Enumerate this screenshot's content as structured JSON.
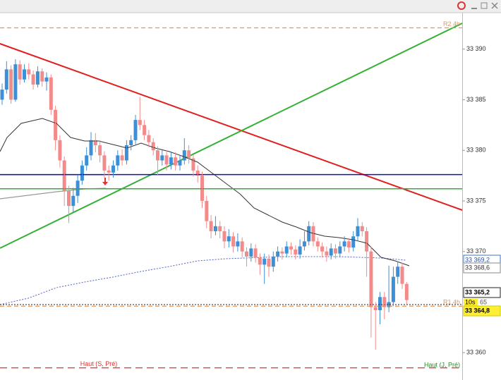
{
  "chart_data": {
    "type": "candlestick",
    "ylim": [
      33357.3,
      33393.6
    ],
    "yticks": [
      {
        "value": 33390,
        "label": "33 390"
      },
      {
        "value": 33385,
        "label": "33 385"
      },
      {
        "value": 33380,
        "label": "33 380"
      },
      {
        "value": 33375,
        "label": "33 375"
      },
      {
        "value": 33370,
        "label": "33 370"
      },
      {
        "value": 33360,
        "label": "33 360"
      }
    ],
    "up_color": "#3d8fd6",
    "down_color": "#f28b8b",
    "open": [
      33385,
      33386,
      33388,
      33385,
      33388.5,
      33387,
      33388,
      33387.5,
      33386.5,
      33387.8,
      33386.8,
      33387.2,
      33384,
      33381,
      33379,
      33376,
      33374.5,
      33375.5,
      33377,
      33378.5,
      33379.5,
      33381,
      33380.5,
      33379.5,
      33378,
      33377.8,
      33378.5,
      33379.5,
      33379,
      33380.5,
      33381,
      33383,
      33382.5,
      33381.5,
      33380.8,
      33380,
      33379,
      33379.5,
      33378.6,
      33379.3,
      33378.5,
      33379,
      33380,
      33379.2,
      33378,
      33377.5,
      33375,
      33373,
      33372,
      33372.5,
      33372,
      33371,
      33371.5,
      33370.5,
      33371,
      33370,
      33369.5,
      33370.3,
      33369.4,
      33368.7,
      33369.3,
      33368.5,
      33369.5,
      33370,
      33369.8,
      33370.5,
      33370.2,
      33369.7,
      33370.5,
      33371,
      33372.5,
      33371,
      33370.5,
      33370,
      33369.6,
      33370.3,
      33369.8,
      33370.5,
      33371,
      33370.4,
      33371.5,
      33372.5,
      33372,
      33370,
      33364.5,
      33364.2,
      33365.5,
      33364.5,
      33365,
      33367.5,
      33368.5,
      33366.8
    ],
    "high": [
      33386.6,
      33388.8,
      33388.4,
      33389,
      33388.9,
      33388.5,
      33388.6,
      33387.9,
      33388.3,
      33388.1,
      33387.7,
      33387.5,
      33384.4,
      33381.5,
      33379.4,
      33376.5,
      33376.3,
      33377.6,
      33379,
      33380.3,
      33381.8,
      33381.7,
      33381,
      33379.9,
      33378.5,
      33379,
      33380,
      33380.1,
      33381,
      33381.5,
      33383.5,
      33385.3,
      33383,
      33382,
      33381.2,
      33380.4,
      33380,
      33380,
      33379.8,
      33379.8,
      33379.5,
      33381.2,
      33380.5,
      33379.6,
      33378.5,
      33377.9,
      33375.5,
      33373.6,
      33373.5,
      33373,
      33372.5,
      33372.2,
      33371.9,
      33371.8,
      33371.4,
      33370.4,
      33370.8,
      33370.7,
      33369.8,
      33369.8,
      33369.7,
      33370,
      33370.5,
      33370.4,
      33371,
      33370.9,
      33370.6,
      33371.2,
      33372,
      33373,
      33372.9,
      33371.4,
      33370.9,
      33370.5,
      33370.8,
      33370.7,
      33371,
      33371.5,
      33371.3,
      33372,
      33373.3,
      33372.9,
      33372.4,
      33370.5,
      33365,
      33366,
      33366,
      33368.6,
      33368.5,
      33369,
      33368.9,
      33367
    ],
    "low": [
      33384.5,
      33385.6,
      33384.6,
      33384.8,
      33386.5,
      33386.7,
      33387,
      33386,
      33386.2,
      33386.3,
      33385.9,
      33383.5,
      33380,
      33378.3,
      33374.5,
      33372.8,
      33373.8,
      33374.8,
      33376.6,
      33378,
      33379,
      33379.8,
      33378.8,
      33377.3,
      33377,
      33377.3,
      33378,
      33378.5,
      33378.6,
      33380,
      33380.6,
      33382,
      33381,
      33380.3,
      33379.5,
      33377.5,
      33378.5,
      33378,
      33378.1,
      33378,
      33378,
      33378.6,
      33378.7,
      33377.4,
      33376.8,
      33374.3,
      33372.3,
      33371.3,
      33371.6,
      33371.3,
      33370.3,
      33370.4,
      33369.9,
      33370,
      33369.4,
      33368.5,
      33369,
      33368.9,
      33367.7,
      33366.8,
      33367.5,
      33368,
      33369,
      33369.2,
      33369.4,
      33369.7,
      33369.2,
      33369.3,
      33370.1,
      33370.6,
      33370.5,
      33370,
      33369.4,
      33369,
      33369.2,
      33369.3,
      33369.4,
      33370,
      33369.9,
      33370,
      33371,
      33371.5,
      33367.5,
      33361.5,
      33360.3,
      33362.8,
      33363.3,
      33364,
      33364.6,
      33366.8,
      33366.3,
      33364.8
    ],
    "close": [
      33386,
      33388,
      33385,
      33388.5,
      33387,
      33388,
      33387.5,
      33386.5,
      33387.8,
      33386.8,
      33387.2,
      33384,
      33381,
      33379,
      33376,
      33374.5,
      33375.5,
      33377,
      33378.5,
      33379.5,
      33381,
      33380.5,
      33379.5,
      33378,
      33377.8,
      33378.5,
      33379.5,
      33379,
      33380.5,
      33381,
      33383,
      33382.5,
      33381.5,
      33380.8,
      33380,
      33379,
      33379.5,
      33378.6,
      33379.3,
      33378.5,
      33379,
      33380,
      33379.2,
      33378,
      33377.5,
      33375,
      33373,
      33372,
      33372.5,
      33372,
      33371,
      33371.5,
      33370.5,
      33371,
      33370,
      33369.5,
      33370.3,
      33369.4,
      33368.7,
      33369.3,
      33368.5,
      33369.5,
      33370,
      33369.8,
      33370.5,
      33370.2,
      33369.7,
      33370.5,
      33371,
      33372.5,
      33371,
      33370.5,
      33370,
      33369.6,
      33370.3,
      33369.8,
      33370.5,
      33371,
      33370.4,
      33371.5,
      33372.5,
      33372,
      33370,
      33364.5,
      33364.2,
      33365.5,
      33364.5,
      33365,
      33367.5,
      33368.5,
      33366.8,
      33365.2
    ],
    "levels": [
      {
        "name": "R2 4h",
        "value": 33392.1,
        "color": "#e0965a",
        "dash": "6,4"
      },
      {
        "name": "R1 4h",
        "value": 33364.6,
        "color": "#e0965a",
        "dash": "6,4"
      },
      {
        "name": "Haut (S, Pré)",
        "value": 33358.5,
        "color": "#e03030",
        "dash": "10,6"
      },
      {
        "value": 33377.6,
        "color": "#1010c0"
      },
      {
        "value": 33376.2,
        "color": "#3aa83a"
      }
    ],
    "second_level_label": "Haut (J, Pré)",
    "price_tags": [
      {
        "value": 33369.2,
        "label": "33 369,2"
      },
      {
        "value": 33368.6,
        "label": "33 368,6"
      },
      {
        "value": 33365.2,
        "label": "33 365,2"
      },
      {
        "value": 33364.8,
        "label": "33 364,8"
      }
    ],
    "timer": "10s",
    "timer_side": "65"
  }
}
